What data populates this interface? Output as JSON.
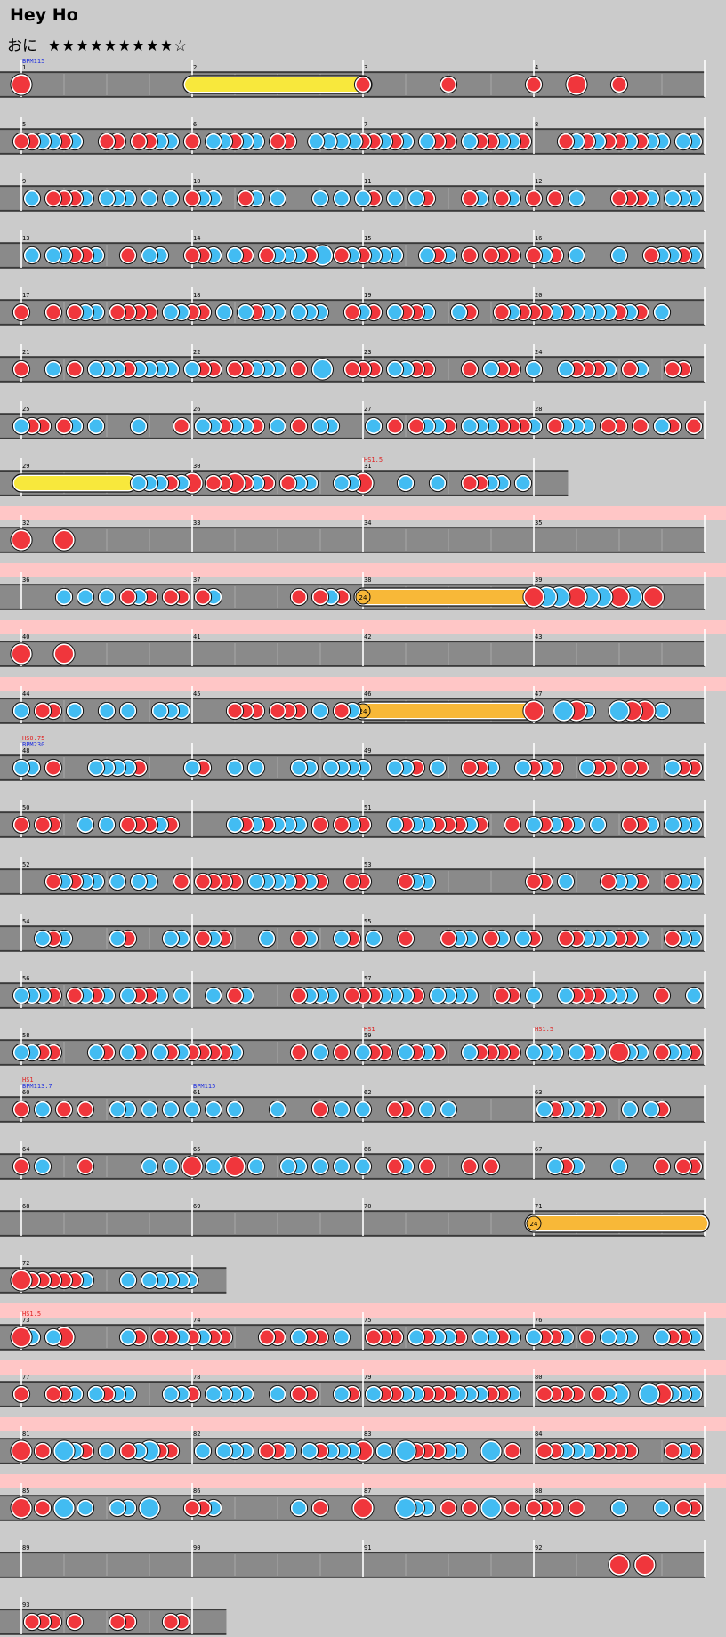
{
  "song": {
    "title": "Hey Ho",
    "course": "おに",
    "stars": "★★★★★★★★★☆"
  },
  "colors": {
    "don": "#f0363c",
    "ka": "#42bcf2",
    "roll": "#f8e83c",
    "balloon": "#f8b838",
    "gogo": "#ffc6c6"
  },
  "rows": [
    {
      "gogo": false,
      "span": 4,
      "labels": [
        {
          "m": 0,
          "text": "1"
        },
        {
          "m": 1,
          "text": "2"
        },
        {
          "m": 2,
          "text": "3"
        },
        {
          "m": 3,
          "text": "4"
        },
        {
          "m": 0,
          "text": "BPM115",
          "color": "#2030e0",
          "lvl": 2
        }
      ],
      "notes": [
        [
          0,
          0,
          "D"
        ],
        [
          1,
          0,
          "R",
          2,
          0
        ],
        [
          2,
          0,
          "d"
        ],
        [
          2,
          2,
          "d"
        ],
        [
          3,
          0,
          "d"
        ],
        [
          3,
          1,
          "D"
        ],
        [
          3,
          2,
          "d"
        ]
      ]
    },
    {
      "gogo": false,
      "span": 4,
      "labels": [
        {
          "m": 0,
          "text": "5"
        },
        {
          "m": 1,
          "text": "6"
        },
        {
          "m": 2,
          "text": "7"
        },
        {
          "m": 3,
          "text": "8"
        }
      ],
      "notes": [
        [
          0,
          0,
          "d"
        ],
        [
          0,
          2,
          "d"
        ],
        [
          1,
          0,
          "d"
        ],
        [
          1,
          1,
          "d"
        ],
        [
          1,
          2,
          "d"
        ],
        [
          1,
          2.9,
          "k"
        ],
        [
          1,
          3.2,
          "k"
        ],
        [
          1,
          3.5,
          "k"
        ],
        [
          1,
          3.8,
          "k"
        ],
        [
          2,
          0,
          "d"
        ],
        [
          2,
          0.25,
          "d"
        ],
        [
          2,
          0.5,
          "k"
        ]
      ]
    },
    {
      "gogo": false,
      "span": 4,
      "labels": [
        {
          "m": 0,
          "text": "9"
        },
        {
          "m": 1,
          "text": "10"
        },
        {
          "m": 2,
          "text": "11"
        },
        {
          "m": 3,
          "text": "12"
        }
      ],
      "notes": []
    },
    {
      "gogo": false,
      "span": 4,
      "labels": [
        {
          "m": 0,
          "text": "13"
        },
        {
          "m": 1,
          "text": "14"
        },
        {
          "m": 2,
          "text": "15"
        },
        {
          "m": 3,
          "text": "16"
        }
      ],
      "notes": [
        [
          1,
          3.05,
          "K"
        ]
      ]
    },
    {
      "gogo": false,
      "span": 4,
      "labels": [
        {
          "m": 0,
          "text": "17"
        },
        {
          "m": 1,
          "text": "18"
        },
        {
          "m": 2,
          "text": "19"
        },
        {
          "m": 3,
          "text": "20"
        }
      ],
      "notes": []
    },
    {
      "gogo": false,
      "span": 4,
      "labels": [
        {
          "m": 0,
          "text": "21"
        },
        {
          "m": 1,
          "text": "22"
        },
        {
          "m": 2,
          "text": "23"
        },
        {
          "m": 3,
          "text": "24"
        }
      ],
      "notes": [
        [
          1,
          3.05,
          "K"
        ]
      ]
    },
    {
      "gogo": false,
      "span": 4,
      "labels": [
        {
          "m": 0,
          "text": "25"
        },
        {
          "m": 1,
          "text": "26"
        },
        {
          "m": 2,
          "text": "27"
        },
        {
          "m": 3,
          "text": "28"
        }
      ],
      "notes": []
    },
    {
      "gogo": false,
      "span": 3.2,
      "labels": [
        {
          "m": 0,
          "text": "29"
        },
        {
          "m": 1,
          "text": "30"
        },
        {
          "m": 2,
          "text": "31"
        },
        {
          "m": 2,
          "text": "HS1.5",
          "color": "#e02020",
          "lvl": 2
        }
      ],
      "notes": [
        [
          0,
          0,
          "R",
          0,
          2.5
        ],
        [
          0,
          3,
          "k"
        ],
        [
          0,
          3.5,
          "d"
        ],
        [
          1,
          0,
          "D"
        ],
        [
          1,
          1,
          "D"
        ],
        [
          2,
          0,
          "D"
        ]
      ]
    },
    {
      "gogo": true,
      "span": 4,
      "labels": [
        {
          "m": 0,
          "text": "32"
        },
        {
          "m": 1,
          "text": "33"
        },
        {
          "m": 2,
          "text": "34"
        },
        {
          "m": 3,
          "text": "35"
        }
      ],
      "notes": [
        [
          0,
          0,
          "D"
        ],
        [
          0,
          1,
          "D"
        ]
      ]
    },
    {
      "gogo": true,
      "span": 4,
      "labels": [
        {
          "m": 0,
          "text": "36"
        },
        {
          "m": 1,
          "text": "37"
        },
        {
          "m": 2,
          "text": "38"
        },
        {
          "m": 3,
          "text": "39"
        }
      ],
      "notes": [
        [
          2,
          0,
          "B",
          2,
          3.9,
          "24"
        ],
        [
          3,
          0,
          "D"
        ],
        [
          3,
          0.3,
          "K"
        ],
        [
          3,
          0.6,
          "K"
        ],
        [
          3,
          1,
          "D"
        ],
        [
          3,
          1.3,
          "K"
        ],
        [
          3,
          1.6,
          "K"
        ],
        [
          3,
          2,
          "D"
        ],
        [
          3,
          2.3,
          "K"
        ],
        [
          3,
          2.8,
          "D"
        ]
      ]
    },
    {
      "gogo": true,
      "span": 4,
      "labels": [
        {
          "m": 0,
          "text": "40"
        },
        {
          "m": 1,
          "text": "41"
        },
        {
          "m": 2,
          "text": "42"
        },
        {
          "m": 3,
          "text": "43"
        }
      ],
      "notes": [
        [
          0,
          0,
          "D"
        ],
        [
          0,
          1,
          "D"
        ]
      ]
    },
    {
      "gogo": true,
      "span": 4,
      "labels": [
        {
          "m": 0,
          "text": "44"
        },
        {
          "m": 1,
          "text": "45"
        },
        {
          "m": 2,
          "text": "46"
        },
        {
          "m": 3,
          "text": "47"
        }
      ],
      "notes": [
        [
          2,
          0,
          "B",
          2,
          3.9,
          "24"
        ],
        [
          3,
          0,
          "D"
        ],
        [
          3,
          0.7,
          "K"
        ],
        [
          3,
          1,
          "D"
        ],
        [
          3,
          2,
          "K"
        ],
        [
          3,
          2.3,
          "D"
        ],
        [
          3,
          2.6,
          "D"
        ]
      ]
    },
    {
      "gogo": false,
      "span": 4,
      "labels": [
        {
          "m": 0,
          "text": "48"
        },
        {
          "m": 2,
          "text": "49"
        },
        {
          "m": 0,
          "text": "BPM230",
          "color": "#2030e0",
          "lvl": 2
        },
        {
          "m": 0,
          "text": "HS0.75",
          "color": "#e02020",
          "lvl": 3
        }
      ],
      "notes": []
    },
    {
      "gogo": false,
      "span": 4,
      "labels": [
        {
          "m": 0,
          "text": "50"
        },
        {
          "m": 2,
          "text": "51"
        }
      ],
      "notes": []
    },
    {
      "gogo": false,
      "span": 4,
      "labels": [
        {
          "m": 0,
          "text": "52"
        },
        {
          "m": 2,
          "text": "53"
        }
      ],
      "notes": []
    },
    {
      "gogo": false,
      "span": 4,
      "labels": [
        {
          "m": 0,
          "text": "54"
        },
        {
          "m": 2,
          "text": "55"
        }
      ],
      "notes": []
    },
    {
      "gogo": false,
      "span": 4,
      "labels": [
        {
          "m": 0,
          "text": "56"
        },
        {
          "m": 2,
          "text": "57"
        }
      ],
      "notes": []
    },
    {
      "gogo": false,
      "span": 4,
      "labels": [
        {
          "m": 0,
          "text": "58"
        },
        {
          "m": 2,
          "text": "59"
        },
        {
          "m": 2,
          "text": "HS1",
          "color": "#e02020",
          "lvl": 2
        },
        {
          "m": 3,
          "text": "HS1.5",
          "color": "#e02020",
          "lvl": 2
        }
      ],
      "notes": [
        [
          3,
          2,
          "D"
        ]
      ]
    },
    {
      "gogo": false,
      "span": 4,
      "labels": [
        {
          "m": 0,
          "text": "60"
        },
        {
          "m": 1,
          "text": "61"
        },
        {
          "m": 2,
          "text": "62"
        },
        {
          "m": 3,
          "text": "63"
        },
        {
          "m": 0,
          "text": "BPM113.7",
          "color": "#2030e0",
          "lvl": 2
        },
        {
          "m": 1,
          "text": "BPM115",
          "color": "#2030e0",
          "lvl": 2
        },
        {
          "m": 0,
          "text": "HS1",
          "color": "#e02020",
          "lvl": 3
        }
      ],
      "notes": [
        [
          1,
          0,
          "k"
        ],
        [
          1,
          2,
          "k"
        ],
        [
          2,
          0,
          "k"
        ],
        [
          2,
          2,
          "k"
        ]
      ]
    },
    {
      "gogo": false,
      "span": 4,
      "labels": [
        {
          "m": 0,
          "text": "64"
        },
        {
          "m": 1,
          "text": "65"
        },
        {
          "m": 2,
          "text": "66"
        },
        {
          "m": 3,
          "text": "67"
        }
      ],
      "notes": [
        [
          1,
          0,
          "D"
        ],
        [
          1,
          1,
          "D"
        ]
      ]
    },
    {
      "gogo": false,
      "span": 4,
      "labels": [
        {
          "m": 0,
          "text": "68"
        },
        {
          "m": 1,
          "text": "69"
        },
        {
          "m": 2,
          "text": "70"
        },
        {
          "m": 3,
          "text": "71"
        }
      ],
      "notes": [
        [
          3,
          0,
          "B",
          3,
          3.9,
          "24"
        ]
      ]
    },
    {
      "gogo": false,
      "span": 1.2,
      "labels": [
        {
          "m": 0,
          "text": "72"
        }
      ],
      "notes": [
        [
          0,
          0,
          "D"
        ],
        [
          0,
          3,
          "k"
        ],
        [
          0,
          3.25,
          "k"
        ],
        [
          0,
          3.5,
          "k"
        ],
        [
          0,
          3.75,
          "k"
        ],
        [
          0,
          3.95,
          "k"
        ]
      ]
    },
    {
      "gogo": true,
      "span": 4,
      "labels": [
        {
          "m": 0,
          "text": "73"
        },
        {
          "m": 1,
          "text": "74"
        },
        {
          "m": 2,
          "text": "75"
        },
        {
          "m": 3,
          "text": "76"
        },
        {
          "m": 0,
          "text": "HS1.5",
          "color": "#e02020",
          "lvl": 2
        }
      ],
      "notes": [
        [
          0,
          0,
          "D"
        ],
        [
          0,
          1,
          "D"
        ]
      ]
    },
    {
      "gogo": true,
      "span": 4,
      "labels": [
        {
          "m": 0,
          "text": "77"
        },
        {
          "m": 1,
          "text": "78"
        },
        {
          "m": 2,
          "text": "79"
        },
        {
          "m": 3,
          "text": "80"
        }
      ],
      "notes": [
        [
          3,
          2,
          "K"
        ],
        [
          3,
          2.7,
          "K"
        ],
        [
          3,
          3,
          "D"
        ]
      ]
    },
    {
      "gogo": true,
      "span": 4,
      "labels": [
        {
          "m": 0,
          "text": "81"
        },
        {
          "m": 1,
          "text": "82"
        },
        {
          "m": 2,
          "text": "83"
        },
        {
          "m": 3,
          "text": "84"
        }
      ],
      "notes": [
        [
          0,
          0,
          "D"
        ],
        [
          0,
          1,
          "K"
        ],
        [
          0,
          3,
          "K"
        ],
        [
          2,
          0,
          "D"
        ],
        [
          2,
          1,
          "K"
        ],
        [
          2,
          3,
          "K"
        ]
      ]
    },
    {
      "gogo": true,
      "span": 4,
      "labels": [
        {
          "m": 0,
          "text": "85"
        },
        {
          "m": 1,
          "text": "86"
        },
        {
          "m": 2,
          "text": "87"
        },
        {
          "m": 3,
          "text": "88"
        }
      ],
      "notes": [
        [
          0,
          0,
          "D"
        ],
        [
          0,
          1,
          "K"
        ],
        [
          0,
          3,
          "K"
        ],
        [
          2,
          0,
          "D"
        ],
        [
          2,
          1,
          "K"
        ],
        [
          2,
          3,
          "K"
        ]
      ]
    },
    {
      "gogo": false,
      "span": 4,
      "labels": [
        {
          "m": 0,
          "text": "89"
        },
        {
          "m": 1,
          "text": "90"
        },
        {
          "m": 2,
          "text": "91"
        },
        {
          "m": 3,
          "text": "92"
        }
      ],
      "notes": [
        [
          3,
          2,
          "D"
        ],
        [
          3,
          2.6,
          "D"
        ]
      ]
    },
    {
      "gogo": false,
      "span": 1.2,
      "labels": [
        {
          "m": 0,
          "text": "93"
        }
      ],
      "notes": []
    }
  ]
}
